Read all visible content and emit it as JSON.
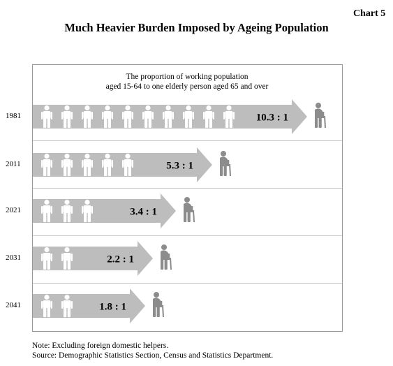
{
  "chart_label": "Chart 5",
  "title": "Much Heavier Burden Imposed by Ageing Population",
  "subtitle_line1": "The proportion of working population",
  "subtitle_line2": "aged 15-64 to one elderly person aged 65 and over",
  "note": "Note: Excluding foreign domestic helpers.",
  "source": "Source: Demographic Statistics Section, Census and Statistics Department.",
  "colors": {
    "arrow": "#bdbdbd",
    "figure": "#ffffff",
    "elderly": "#8c8c8c",
    "border": "#999999",
    "divider": "#c8c8c8"
  },
  "chart_data": {
    "type": "bar",
    "orientation": "horizontal",
    "title": "Much Heavier Burden Imposed by Ageing Population",
    "categories": [
      "1981",
      "2011",
      "2021",
      "2031",
      "2041"
    ],
    "values": [
      10.3,
      5.3,
      3.4,
      2.2,
      1.8
    ],
    "value_labels": [
      "10.3 : 1",
      "5.3 : 1",
      "3.4 : 1",
      "2.2 : 1",
      "1.8 : 1"
    ],
    "figure_counts": [
      10,
      5,
      3,
      2,
      2
    ]
  }
}
